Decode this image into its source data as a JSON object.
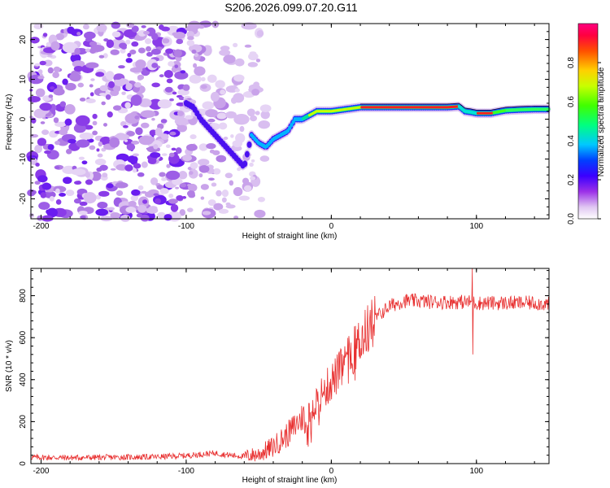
{
  "title": "S206.2026.099.07.20.G11",
  "chart_data": [
    {
      "type": "heatmap",
      "xlabel": "Height of straight line (km)",
      "ylabel": "Frequency (Hz)",
      "xlim": [
        -207,
        150
      ],
      "ylim": [
        -25,
        24
      ],
      "xticks": [
        -200,
        -100,
        0,
        100
      ],
      "yticks": [
        -20,
        -10,
        0,
        10,
        20
      ],
      "ridge": {
        "x": [
          -100,
          -95,
          -90,
          -85,
          -80,
          -75,
          -70,
          -65,
          -60,
          -55,
          -50,
          -45,
          -40,
          -35,
          -30,
          -25,
          -20,
          -15,
          -10,
          -5,
          0,
          10,
          20,
          40,
          60,
          80,
          88,
          92,
          96,
          100,
          110,
          120,
          130,
          140,
          150
        ],
        "y": [
          4,
          3,
          0,
          -2,
          -4,
          -6,
          -8,
          -10,
          -12,
          -4,
          -6,
          -7,
          -5,
          -4,
          -3,
          0,
          0,
          1,
          2,
          2,
          2,
          2.5,
          3,
          3,
          3,
          3,
          3.2,
          2,
          1.8,
          1.5,
          1.5,
          2.2,
          2.4,
          2.5,
          2.5
        ]
      },
      "colorbar": {
        "label": "Normalized spectral amplitude",
        "ticks": [
          "0.0",
          "0.2",
          "0.4",
          "0.6",
          "0.8"
        ],
        "range": [
          0,
          1
        ]
      }
    },
    {
      "type": "line",
      "xlabel": "Height of straight line (km)",
      "ylabel": "SNR (10 * v/v)",
      "xlim": [
        -207,
        150
      ],
      "ylim": [
        0,
        930
      ],
      "xticks": [
        -200,
        -100,
        0,
        100
      ],
      "yticks": [
        0,
        200,
        400,
        600,
        800
      ],
      "series": [
        {
          "name": "SNR",
          "color": "#e83030",
          "x": [
            -207,
            -180,
            -150,
            -120,
            -100,
            -80,
            -70,
            -60,
            -50,
            -40,
            -30,
            -20,
            -10,
            0,
            10,
            20,
            30,
            40,
            50,
            60,
            70,
            80,
            90,
            96,
            100,
            110,
            120,
            130,
            140,
            150
          ],
          "y": [
            30,
            28,
            30,
            32,
            38,
            50,
            40,
            35,
            45,
            80,
            140,
            220,
            300,
            390,
            480,
            590,
            690,
            750,
            775,
            775,
            770,
            770,
            770,
            770,
            765,
            765,
            765,
            765,
            765,
            760
          ]
        }
      ],
      "spike": {
        "x": 97,
        "y_high": 930,
        "y_low": 520
      }
    }
  ]
}
